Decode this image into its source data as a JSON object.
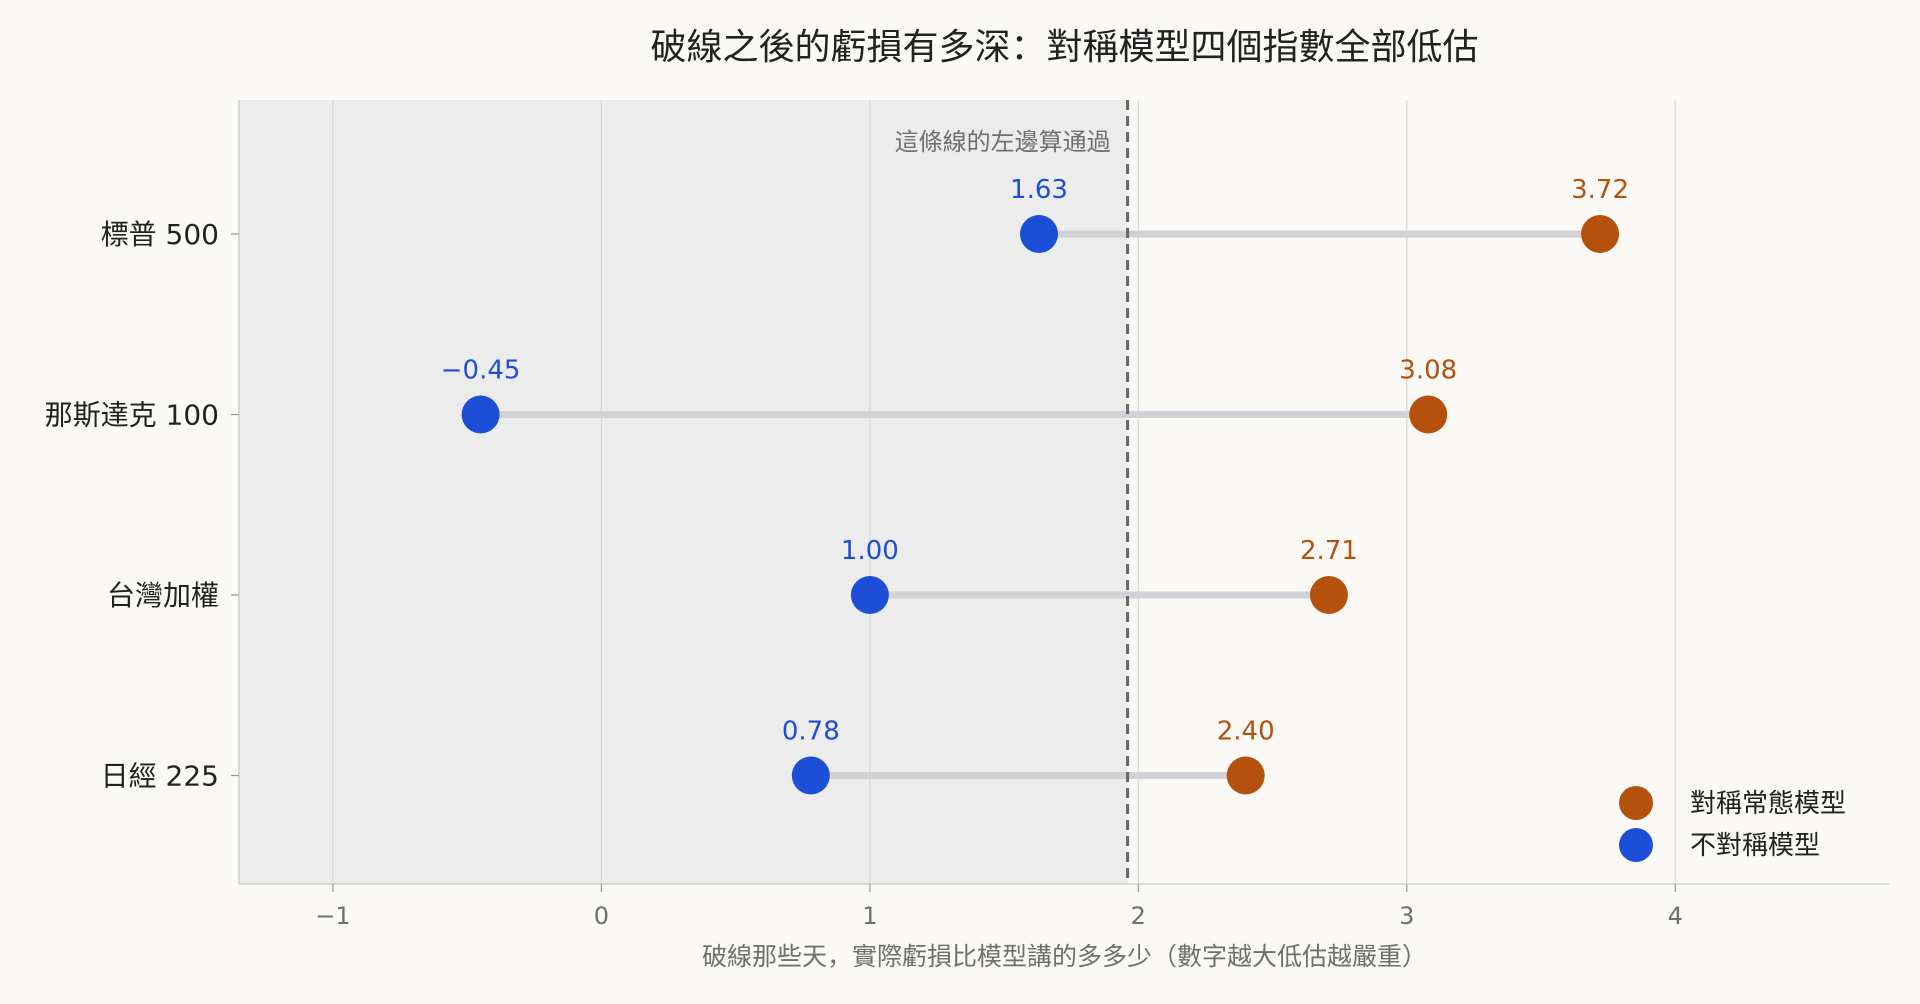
{
  "chart_data": {
    "type": "dot-plot",
    "title": "破線之後的虧損有多深：對稱模型四個指數全部低估",
    "xlabel": "破線那些天，實際虧損比模型講的多多少（數字越大低估越嚴重）",
    "ylabel": "",
    "xlim": [
      -1.35,
      4.8
    ],
    "x_ticks": [
      -1,
      0,
      1,
      2,
      3,
      4
    ],
    "x_tick_labels": [
      "−1",
      "0",
      "1",
      "2",
      "3",
      "4"
    ],
    "grid": "vertical",
    "categories": [
      "標普 500",
      "那斯達克 100",
      "台灣加權",
      "日經 225"
    ],
    "series": [
      {
        "name": "對稱常態模型",
        "color": "#b5500d",
        "values": [
          3.72,
          3.08,
          2.71,
          2.4
        ],
        "labels": [
          "3.72",
          "3.08",
          "2.71",
          "2.40"
        ]
      },
      {
        "name": "不對稱模型",
        "color": "#1d4ed8",
        "values": [
          1.63,
          -0.45,
          1.0,
          0.78
        ],
        "labels": [
          "1.63",
          "−0.45",
          "1.00",
          "0.78"
        ]
      }
    ],
    "threshold": {
      "value": 1.96,
      "label": "這條線的左邊算通過",
      "shaded_region": "left"
    },
    "legend_position": "bottom-right",
    "colors": {
      "background": "#faf9f6",
      "shade": "#ececec",
      "connector": "#d1d1d6",
      "grid": "#d8d8d8",
      "threshold": "#666666",
      "text": "#222222",
      "muted": "#6f6f6f"
    }
  }
}
